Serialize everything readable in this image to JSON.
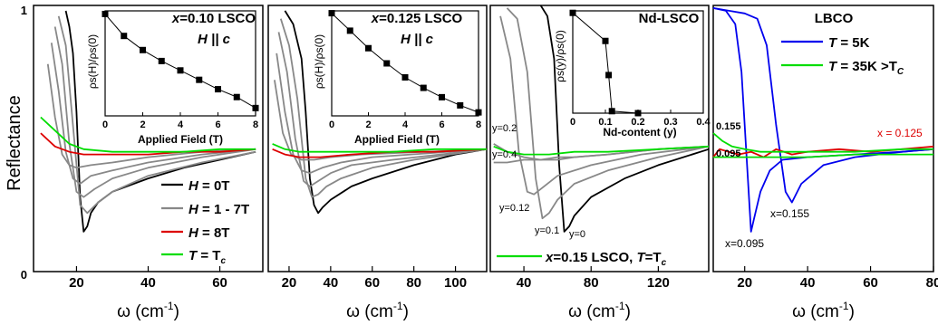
{
  "figure": {
    "ylabel": "Reflectance",
    "y_ticks": [
      "0",
      "1"
    ],
    "xlabel_symbol": "ω",
    "xlabel_unit": "(cm",
    "xlabel_exp": "-1",
    "xlabel_close": ")"
  },
  "chart_data": [
    {
      "panel": "a",
      "type": "line",
      "xlim": [
        8,
        72
      ],
      "ylim": [
        0,
        1
      ],
      "x_ticks": [
        20,
        40,
        60
      ],
      "legend": [
        {
          "label_symbol": "H",
          "label_rest": " = 0T",
          "color": "#000000"
        },
        {
          "label_symbol": "H",
          "label_rest": " = 1 - 7T",
          "color": "#888888"
        },
        {
          "label_symbol": "H",
          "label_rest": " = 8T",
          "color": "#dd0000"
        },
        {
          "label_symbol": "T",
          "label_rest": " = T",
          "label_sub": "c",
          "color": "#00dd00"
        }
      ],
      "series": [
        {
          "name": "H = 0T",
          "color": "#000000",
          "x": [
            17,
            18,
            19,
            20,
            21,
            22,
            23,
            24,
            26,
            30,
            40,
            50,
            60,
            70
          ],
          "y": [
            0.98,
            0.92,
            0.82,
            0.6,
            0.28,
            0.15,
            0.17,
            0.22,
            0.26,
            0.3,
            0.35,
            0.39,
            0.42,
            0.45
          ]
        },
        {
          "name": "H = 1T",
          "color": "#888888",
          "x": [
            15,
            17,
            19,
            21,
            23,
            26,
            30,
            40,
            55,
            70
          ],
          "y": [
            0.96,
            0.85,
            0.55,
            0.25,
            0.22,
            0.26,
            0.3,
            0.36,
            0.41,
            0.45
          ]
        },
        {
          "name": "H = 3T",
          "color": "#888888",
          "x": [
            14,
            16,
            18,
            20,
            22,
            25,
            30,
            40,
            55,
            70
          ],
          "y": [
            0.92,
            0.78,
            0.48,
            0.3,
            0.28,
            0.31,
            0.35,
            0.39,
            0.43,
            0.46
          ]
        },
        {
          "name": "H = 5T",
          "color": "#888888",
          "x": [
            13,
            15,
            17,
            19,
            21,
            24,
            30,
            40,
            55,
            70
          ],
          "y": [
            0.86,
            0.68,
            0.45,
            0.35,
            0.33,
            0.36,
            0.38,
            0.41,
            0.44,
            0.46
          ]
        },
        {
          "name": "H = 7T",
          "color": "#888888",
          "x": [
            12,
            14,
            16,
            18,
            20,
            24,
            30,
            40,
            55,
            70
          ],
          "y": [
            0.78,
            0.58,
            0.44,
            0.4,
            0.39,
            0.4,
            0.41,
            0.43,
            0.45,
            0.46
          ]
        },
        {
          "name": "H = 8T",
          "color": "#dd0000",
          "x": [
            10,
            14,
            18,
            22,
            30,
            40,
            50,
            60,
            70
          ],
          "y": [
            0.52,
            0.47,
            0.45,
            0.44,
            0.44,
            0.44,
            0.45,
            0.45,
            0.46
          ]
        },
        {
          "name": "T = Tc",
          "color": "#00dd00",
          "x": [
            10,
            14,
            18,
            22,
            30,
            40,
            50,
            60,
            70
          ],
          "y": [
            0.58,
            0.53,
            0.48,
            0.46,
            0.45,
            0.45,
            0.45,
            0.46,
            0.46
          ]
        }
      ],
      "inset": {
        "title_x": "x",
        "title_rest": "=0.10 LSCO",
        "subtitle_h": "H",
        "subtitle_rest": " || c",
        "xlabel": "Applied Field (T)",
        "ylabel": "ρs(H)/ρs(0)",
        "xlim": [
          0,
          8
        ],
        "ylim": [
          0.35,
          1.02
        ],
        "x_ticks": [
          0,
          2,
          4,
          6,
          8
        ],
        "x": [
          0,
          1,
          2,
          3,
          4,
          5,
          6,
          7,
          8
        ],
        "y": [
          1.0,
          0.86,
          0.77,
          0.7,
          0.64,
          0.58,
          0.52,
          0.47,
          0.4
        ]
      }
    },
    {
      "panel": "b",
      "type": "line",
      "xlim": [
        10,
        115
      ],
      "ylim": [
        0,
        1
      ],
      "x_ticks": [
        20,
        40,
        60,
        80,
        100
      ],
      "series": [
        {
          "name": "H = 0T",
          "color": "#000000",
          "x": [
            18,
            22,
            26,
            28,
            30,
            32,
            34,
            36,
            40,
            50,
            60,
            80,
            100,
            115
          ],
          "y": [
            0.98,
            0.93,
            0.8,
            0.6,
            0.35,
            0.25,
            0.22,
            0.24,
            0.27,
            0.32,
            0.35,
            0.4,
            0.44,
            0.46
          ]
        },
        {
          "name": "H = 1T",
          "color": "#888888",
          "x": [
            16,
            20,
            24,
            28,
            31,
            34,
            38,
            45,
            60,
            80,
            115
          ],
          "y": [
            0.95,
            0.85,
            0.65,
            0.35,
            0.28,
            0.29,
            0.32,
            0.35,
            0.39,
            0.42,
            0.46
          ]
        },
        {
          "name": "H = 3T",
          "color": "#888888",
          "x": [
            15,
            19,
            23,
            27,
            30,
            34,
            40,
            50,
            70,
            115
          ],
          "y": [
            0.9,
            0.75,
            0.5,
            0.34,
            0.32,
            0.34,
            0.37,
            0.4,
            0.42,
            0.46
          ]
        },
        {
          "name": "H = 5T",
          "color": "#888888",
          "x": [
            14,
            18,
            22,
            26,
            30,
            36,
            45,
            60,
            115
          ],
          "y": [
            0.82,
            0.6,
            0.44,
            0.38,
            0.37,
            0.39,
            0.41,
            0.43,
            0.46
          ]
        },
        {
          "name": "H = 7T",
          "color": "#888888",
          "x": [
            13,
            17,
            21,
            26,
            32,
            40,
            55,
            115
          ],
          "y": [
            0.72,
            0.52,
            0.44,
            0.42,
            0.42,
            0.43,
            0.44,
            0.46
          ]
        },
        {
          "name": "H = 8T",
          "color": "#dd0000",
          "x": [
            12,
            18,
            25,
            35,
            50,
            70,
            90,
            115
          ],
          "y": [
            0.46,
            0.44,
            0.43,
            0.43,
            0.44,
            0.45,
            0.45,
            0.46
          ]
        },
        {
          "name": "T = Tc",
          "color": "#00dd00",
          "x": [
            12,
            18,
            25,
            35,
            50,
            70,
            90,
            115
          ],
          "y": [
            0.48,
            0.46,
            0.45,
            0.45,
            0.45,
            0.45,
            0.46,
            0.46
          ]
        }
      ],
      "inset": {
        "title_x": "x",
        "title_rest": "=0.125 LSCO",
        "subtitle_h": "H",
        "subtitle_rest": " || c",
        "xlabel": "Applied Field (T)",
        "ylabel": "ρs(H)/ρs(0)",
        "xlim": [
          0,
          8
        ],
        "ylim": [
          0.12,
          1.02
        ],
        "x_ticks": [
          0,
          2,
          4,
          6,
          8
        ],
        "x": [
          0,
          1,
          2,
          3,
          4,
          5,
          6,
          7,
          8
        ],
        "y": [
          1.0,
          0.85,
          0.7,
          0.57,
          0.45,
          0.36,
          0.28,
          0.21,
          0.15
        ]
      }
    },
    {
      "panel": "c",
      "type": "line",
      "xlim": [
        20,
        150
      ],
      "ylim": [
        0,
        1
      ],
      "x_ticks": [
        40,
        80,
        120
      ],
      "legend": [
        {
          "label_x": "x",
          "label_rest": "=0.15 LSCO, ",
          "label_t": "T",
          "label_eq": "=T",
          "label_sub": "c",
          "color": "#00dd00"
        }
      ],
      "curve_labels": [
        {
          "text": "y=0.2"
        },
        {
          "text": "y=0.4"
        },
        {
          "text": "y=0.12"
        },
        {
          "text": "y=0.1"
        },
        {
          "text": "y=0"
        }
      ],
      "series": [
        {
          "name": "y=0",
          "color": "#000000",
          "x": [
            50,
            54,
            58,
            61,
            64,
            67,
            70,
            80,
            100,
            120,
            150
          ],
          "y": [
            1.0,
            0.96,
            0.8,
            0.4,
            0.15,
            0.17,
            0.21,
            0.28,
            0.35,
            0.4,
            0.46
          ]
        },
        {
          "name": "y=0.1",
          "color": "#888888",
          "x": [
            30,
            36,
            42,
            47,
            51,
            55,
            60,
            70,
            90,
            120,
            150
          ],
          "y": [
            0.99,
            0.95,
            0.75,
            0.35,
            0.2,
            0.22,
            0.27,
            0.33,
            0.38,
            0.43,
            0.47
          ]
        },
        {
          "name": "y=0.12",
          "color": "#888888",
          "x": [
            26,
            32,
            37,
            42,
            46,
            52,
            60,
            80,
            110,
            150
          ],
          "y": [
            0.96,
            0.8,
            0.45,
            0.3,
            0.29,
            0.32,
            0.36,
            0.4,
            0.44,
            0.47
          ]
        },
        {
          "name": "y=0.2",
          "color": "#888888",
          "x": [
            22,
            30,
            40,
            50,
            60,
            70,
            90,
            120,
            150
          ],
          "y": [
            0.48,
            0.45,
            0.43,
            0.42,
            0.42,
            0.43,
            0.44,
            0.46,
            0.47
          ]
        },
        {
          "name": "y=0.4",
          "color": "#888888",
          "x": [
            22,
            30,
            40,
            50,
            60,
            70,
            90,
            120,
            150
          ],
          "y": [
            0.41,
            0.41,
            0.42,
            0.42,
            0.43,
            0.43,
            0.44,
            0.46,
            0.47
          ]
        },
        {
          "name": "x=0.15 LSCO, T=Tc",
          "color": "#00dd00",
          "x": [
            22,
            30,
            40,
            55,
            70,
            90,
            120,
            150
          ],
          "y": [
            0.47,
            0.45,
            0.44,
            0.44,
            0.45,
            0.45,
            0.46,
            0.47
          ]
        }
      ],
      "inset": {
        "title": "Nd-LSCO",
        "xlabel": "Nd-content (y)",
        "ylabel": "ρs(y)/ρs(0)",
        "xlim": [
          0,
          0.4
        ],
        "ylim": [
          0,
          1.02
        ],
        "x_ticks": [
          "0",
          "0.1",
          "0.2",
          "0.3",
          "0.4"
        ],
        "x": [
          0,
          0.1,
          0.11,
          0.12,
          0.2
        ],
        "y": [
          1.0,
          0.72,
          0.38,
          0.02,
          0.0
        ]
      }
    },
    {
      "panel": "d",
      "type": "line",
      "xlim": [
        10,
        80
      ],
      "ylim": [
        0,
        1
      ],
      "x_ticks": [
        20,
        40,
        60,
        80
      ],
      "title": "LBCO",
      "legend": [
        {
          "label_t": "T",
          "label_rest": " = 5K",
          "color": "#0000ee"
        },
        {
          "label_t": "T",
          "label_rest": " = 35K >T",
          "label_sub": "C",
          "color": "#00dd00"
        }
      ],
      "curve_labels": [
        {
          "text": "0.155"
        },
        {
          "text": "0.095"
        },
        {
          "text": "x = 0.125"
        },
        {
          "text": "x=0.155"
        },
        {
          "text": "x=0.095"
        }
      ],
      "series": [
        {
          "name": "x=0.095 T=5K",
          "color": "#0000ee",
          "x": [
            10,
            14,
            17,
            19,
            21,
            22,
            23,
            25,
            28,
            32,
            40,
            55,
            70,
            80
          ],
          "y": [
            0.99,
            0.98,
            0.93,
            0.75,
            0.35,
            0.15,
            0.2,
            0.3,
            0.38,
            0.42,
            0.43,
            0.44,
            0.45,
            0.46
          ]
        },
        {
          "name": "x=0.155 T=5K",
          "color": "#0000ee",
          "x": [
            10,
            15,
            20,
            24,
            27,
            30,
            33,
            35,
            38,
            45,
            55,
            70,
            80
          ],
          "y": [
            0.99,
            0.98,
            0.97,
            0.95,
            0.85,
            0.55,
            0.3,
            0.26,
            0.33,
            0.4,
            0.43,
            0.45,
            0.46
          ]
        },
        {
          "name": "x=0.125 T=5K",
          "color": "#dd0000",
          "x": [
            10,
            12,
            15,
            18,
            22,
            26,
            30,
            35,
            40,
            50,
            60,
            70,
            80
          ],
          "y": [
            0.43,
            0.46,
            0.45,
            0.44,
            0.45,
            0.43,
            0.46,
            0.44,
            0.45,
            0.46,
            0.45,
            0.46,
            0.47
          ]
        },
        {
          "name": "x=0.155 T=35K",
          "color": "#00dd00",
          "x": [
            10,
            13,
            16,
            20,
            25,
            30,
            40,
            55,
            70,
            80
          ],
          "y": [
            0.52,
            0.49,
            0.47,
            0.46,
            0.45,
            0.45,
            0.45,
            0.45,
            0.46,
            0.46
          ]
        },
        {
          "name": "x=0.095 T=35K",
          "color": "#00dd00",
          "x": [
            10,
            15,
            20,
            30,
            40,
            55,
            70,
            80
          ],
          "y": [
            0.43,
            0.43,
            0.43,
            0.43,
            0.43,
            0.44,
            0.44,
            0.44
          ]
        }
      ]
    }
  ]
}
